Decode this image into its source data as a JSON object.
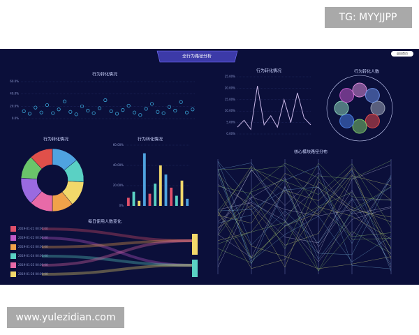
{
  "watermarks": {
    "top": "TG: MYYJJPP",
    "bottom": "www.yulezidian.com"
  },
  "dashboard": {
    "title": "全行为路径分析",
    "button": "返回首页"
  },
  "panels": {
    "scatter": {
      "title": "行为转化情况",
      "ylim": [
        0,
        60
      ],
      "yticks": [
        {
          "value": 0,
          "label": "0.0%"
        },
        {
          "value": 20,
          "label": "20.0%"
        },
        {
          "value": 40,
          "label": "40.0%"
        },
        {
          "value": 60,
          "label": "60.0%"
        }
      ],
      "values": [
        12,
        8,
        18,
        10,
        22,
        9,
        15,
        28,
        11,
        7,
        20,
        13,
        9,
        17,
        30,
        12,
        8,
        14,
        21,
        10,
        6,
        16,
        24,
        11,
        9,
        19,
        13,
        27,
        10,
        15
      ],
      "color": "#3aa7d9"
    },
    "line": {
      "title": "行为转化情况",
      "ylim": [
        0,
        25
      ],
      "yticks": [
        {
          "value": 0,
          "label": "0.00%"
        },
        {
          "value": 5,
          "label": "5.00%"
        },
        {
          "value": 10,
          "label": "10.00%"
        },
        {
          "value": 15,
          "label": "15.00%"
        },
        {
          "value": 20,
          "label": "20.00%"
        },
        {
          "value": 25,
          "label": "25.00%"
        }
      ],
      "values": [
        3,
        6,
        2,
        21,
        4,
        8,
        3,
        15,
        5,
        18,
        7,
        4
      ],
      "color": "#c9b8e8"
    },
    "bubbles": {
      "title": "行为转化人数",
      "colors": [
        "#9aa3b5",
        "#e04a4a",
        "#7cc46a",
        "#4a7ee0",
        "#8ad0b8",
        "#c05ac8",
        "#d98ad9",
        "#6a8ce0"
      ]
    },
    "donut": {
      "title": "行为转化情况",
      "values": [
        14,
        12,
        13,
        11,
        12,
        14,
        12,
        12
      ],
      "colors": [
        "#4fa3e0",
        "#5ad1c4",
        "#f2d86a",
        "#f0a24a",
        "#e86aa8",
        "#9a6ae0",
        "#6ac46a",
        "#e0504a"
      ]
    },
    "bars": {
      "title": "行为转化情况",
      "ylim": [
        0,
        60
      ],
      "yticks": [
        {
          "value": 0,
          "label": "0%"
        },
        {
          "value": 20,
          "label": "20.00%"
        },
        {
          "value": 40,
          "label": "40.00%"
        },
        {
          "value": 60,
          "label": "60.00%"
        }
      ],
      "values": [
        8,
        14,
        5,
        52,
        12,
        22,
        40,
        31,
        18,
        10,
        25,
        7
      ],
      "colors": [
        "#e0506a",
        "#5ad1c4",
        "#f2d86a",
        "#4fa3e0"
      ]
    },
    "sankey": {
      "title": "每日使用人数变化",
      "dates": [
        "2019-01-21 00:00:00",
        "2019-01-22 00:00:00",
        "2019-01-23 00:00:00",
        "2019-01-24 00:00:00",
        "2019-01-25 00:00:00",
        "2019-01-26 00:00:00"
      ],
      "colors": [
        "#e0506a",
        "#c05ac8",
        "#f0a24a",
        "#5ad1c4",
        "#e86aa8",
        "#f2d86a"
      ]
    },
    "parallel": {
      "title": "核心模块路径分布"
    }
  }
}
